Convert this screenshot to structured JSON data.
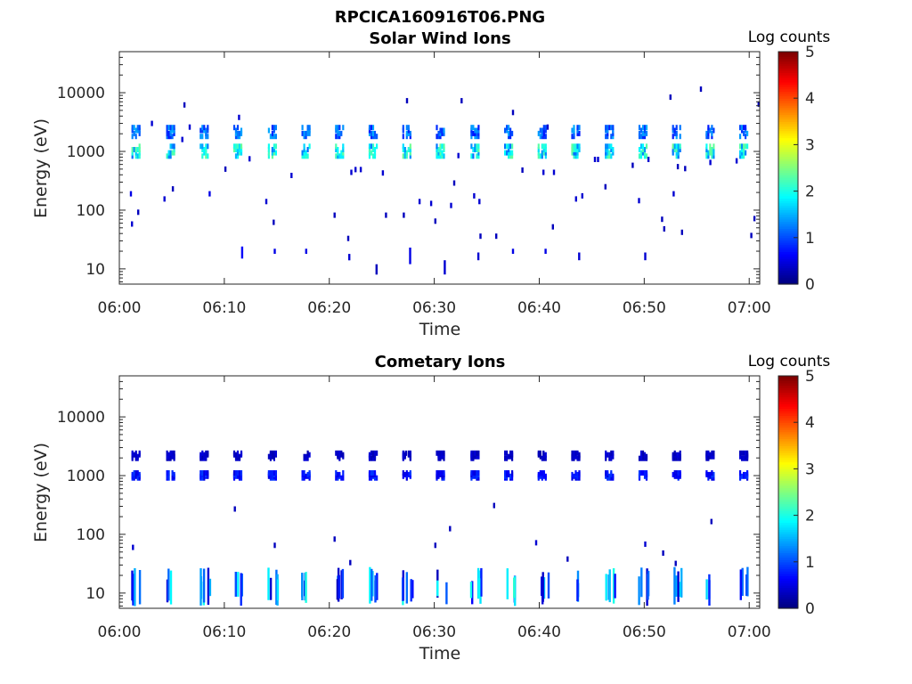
{
  "figure": {
    "title": "RPCICA160916T06.PNG"
  },
  "chart_data": [
    {
      "type": "heatmap",
      "title": "Solar Wind Ions",
      "xlabel": "Time",
      "ylabel": "Energy (eV)",
      "x_ticks": [
        "06:00",
        "06:10",
        "06:20",
        "06:30",
        "06:40",
        "06:50",
        "07:00"
      ],
      "x_range_minutes": [
        0,
        61
      ],
      "y_scale": "log",
      "y_range": [
        5.5,
        50000
      ],
      "y_ticks": [
        10,
        100,
        1000,
        10000
      ],
      "y_tick_labels": [
        "10",
        "100",
        "1000",
        "10000"
      ],
      "colorbar": {
        "label": "Log counts",
        "range": [
          0,
          5
        ],
        "ticks": [
          "0",
          "1",
          "2",
          "3",
          "4",
          "5"
        ],
        "colormap": "jet"
      },
      "sweep_times_minutes": [
        1.5,
        4.8,
        8.0,
        11.2,
        14.5,
        17.7,
        20.9,
        24.1,
        27.3,
        30.5,
        33.8,
        37.0,
        40.2,
        43.4,
        46.6,
        49.8,
        53.0,
        56.2,
        59.4
      ],
      "bands": [
        {
          "energy_min": 780,
          "energy_max": 1300,
          "log_counts": 2.1
        },
        {
          "energy_min": 1700,
          "energy_max": 2700,
          "log_counts": 1.3
        }
      ],
      "streaks": [
        {
          "t": 11.6,
          "emin": 15,
          "emax": 24,
          "v": 0.6
        },
        {
          "t": 14.7,
          "emin": 18,
          "emax": 22,
          "v": 0.5
        },
        {
          "t": 17.7,
          "emin": 18,
          "emax": 22,
          "v": 0.5
        },
        {
          "t": 21.8,
          "emin": 14,
          "emax": 18,
          "v": 0.4
        },
        {
          "t": 24.4,
          "emin": 8,
          "emax": 12,
          "v": 0.3
        },
        {
          "t": 27.6,
          "emin": 12,
          "emax": 23,
          "v": 0.5
        },
        {
          "t": 30.9,
          "emin": 8,
          "emax": 14,
          "v": 0.4
        },
        {
          "t": 34.1,
          "emin": 14,
          "emax": 19,
          "v": 0.4
        },
        {
          "t": 37.4,
          "emin": 18,
          "emax": 22,
          "v": 0.5
        },
        {
          "t": 40.5,
          "emin": 18,
          "emax": 22,
          "v": 0.5
        },
        {
          "t": 43.7,
          "emin": 14,
          "emax": 19,
          "v": 0.4
        },
        {
          "t": 50.0,
          "emin": 14,
          "emax": 19,
          "v": 0.4
        }
      ],
      "points": [
        {
          "t": 1.0,
          "e": 190,
          "v": 0.5
        },
        {
          "t": 1.1,
          "e": 58,
          "v": 0.4
        },
        {
          "t": 1.7,
          "e": 92,
          "v": 0.3
        },
        {
          "t": 3.0,
          "e": 3000,
          "v": 0.4
        },
        {
          "t": 4.2,
          "e": 155,
          "v": 0.4
        },
        {
          "t": 5.0,
          "e": 230,
          "v": 0.3
        },
        {
          "t": 5.9,
          "e": 1600,
          "v": 0.4
        },
        {
          "t": 6.1,
          "e": 6200,
          "v": 0.3
        },
        {
          "t": 6.6,
          "e": 2600,
          "v": 0.4
        },
        {
          "t": 8.5,
          "e": 190,
          "v": 0.5
        },
        {
          "t": 10.0,
          "e": 500,
          "v": 0.3
        },
        {
          "t": 11.3,
          "e": 3800,
          "v": 0.4
        },
        {
          "t": 12.3,
          "e": 750,
          "v": 0.4
        },
        {
          "t": 13.9,
          "e": 140,
          "v": 0.4
        },
        {
          "t": 14.6,
          "e": 62,
          "v": 0.3
        },
        {
          "t": 16.3,
          "e": 390,
          "v": 0.4
        },
        {
          "t": 20.4,
          "e": 82,
          "v": 0.3
        },
        {
          "t": 21.7,
          "e": 33,
          "v": 0.3
        },
        {
          "t": 22.0,
          "e": 440,
          "v": 0.4
        },
        {
          "t": 22.4,
          "e": 490,
          "v": 0.4
        },
        {
          "t": 22.9,
          "e": 490,
          "v": 0.4
        },
        {
          "t": 25.0,
          "e": 430,
          "v": 0.4
        },
        {
          "t": 25.3,
          "e": 82,
          "v": 0.3
        },
        {
          "t": 27.0,
          "e": 82,
          "v": 0.3
        },
        {
          "t": 27.3,
          "e": 7300,
          "v": 0.3
        },
        {
          "t": 28.5,
          "e": 140,
          "v": 0.4
        },
        {
          "t": 29.6,
          "e": 130,
          "v": 0.4
        },
        {
          "t": 30.0,
          "e": 65,
          "v": 0.3
        },
        {
          "t": 31.5,
          "e": 120,
          "v": 0.4
        },
        {
          "t": 31.8,
          "e": 290,
          "v": 0.3
        },
        {
          "t": 32.5,
          "e": 7300,
          "v": 0.3
        },
        {
          "t": 32.2,
          "e": 850,
          "v": 0.4
        },
        {
          "t": 33.7,
          "e": 175,
          "v": 0.4
        },
        {
          "t": 34.3,
          "e": 36,
          "v": 0.3
        },
        {
          "t": 34.2,
          "e": 140,
          "v": 0.4
        },
        {
          "t": 35.8,
          "e": 36,
          "v": 0.3
        },
        {
          "t": 37.4,
          "e": 4600,
          "v": 0.3
        },
        {
          "t": 38.3,
          "e": 480,
          "v": 0.3
        },
        {
          "t": 40.3,
          "e": 440,
          "v": 0.4
        },
        {
          "t": 40.7,
          "e": 2600,
          "v": 0.4
        },
        {
          "t": 41.3,
          "e": 440,
          "v": 0.4
        },
        {
          "t": 41.2,
          "e": 52,
          "v": 0.3
        },
        {
          "t": 43.4,
          "e": 155,
          "v": 0.4
        },
        {
          "t": 44.0,
          "e": 175,
          "v": 0.4
        },
        {
          "t": 45.2,
          "e": 730,
          "v": 0.4
        },
        {
          "t": 45.5,
          "e": 730,
          "v": 0.4
        },
        {
          "t": 46.2,
          "e": 250,
          "v": 0.3
        },
        {
          "t": 48.8,
          "e": 580,
          "v": 0.3
        },
        {
          "t": 49.4,
          "e": 145,
          "v": 0.4
        },
        {
          "t": 50.3,
          "e": 730,
          "v": 0.4
        },
        {
          "t": 51.6,
          "e": 70,
          "v": 0.3
        },
        {
          "t": 51.8,
          "e": 48,
          "v": 0.3
        },
        {
          "t": 52.4,
          "e": 8400,
          "v": 0.3
        },
        {
          "t": 52.7,
          "e": 190,
          "v": 0.4
        },
        {
          "t": 53.1,
          "e": 550,
          "v": 0.3
        },
        {
          "t": 53.5,
          "e": 42,
          "v": 0.3
        },
        {
          "t": 53.8,
          "e": 510,
          "v": 0.3
        },
        {
          "t": 55.3,
          "e": 11500,
          "v": 0.3
        },
        {
          "t": 56.2,
          "e": 650,
          "v": 0.4
        },
        {
          "t": 58.7,
          "e": 690,
          "v": 0.4
        },
        {
          "t": 60.1,
          "e": 37,
          "v": 0.3
        },
        {
          "t": 60.4,
          "e": 72,
          "v": 0.3
        },
        {
          "t": 60.8,
          "e": 6400,
          "v": 0.3
        }
      ]
    },
    {
      "type": "heatmap",
      "title": "Cometary Ions",
      "xlabel": "Time",
      "ylabel": "Energy (eV)",
      "x_ticks": [
        "06:00",
        "06:10",
        "06:20",
        "06:30",
        "06:40",
        "06:50",
        "07:00"
      ],
      "x_range_minutes": [
        0,
        61
      ],
      "y_scale": "log",
      "y_range": [
        5.5,
        50000
      ],
      "y_ticks": [
        10,
        100,
        1000,
        10000
      ],
      "y_tick_labels": [
        "10",
        "100",
        "1000",
        "10000"
      ],
      "colorbar": {
        "label": "Log counts",
        "range": [
          0,
          5
        ],
        "ticks": [
          "0",
          "1",
          "2",
          "3",
          "4",
          "5"
        ],
        "colormap": "jet"
      },
      "sweep_times_minutes": [
        1.5,
        4.8,
        8.0,
        11.2,
        14.5,
        17.7,
        20.9,
        24.1,
        27.3,
        30.5,
        33.8,
        37.0,
        40.2,
        43.4,
        46.6,
        49.8,
        53.0,
        56.2,
        59.4
      ],
      "bands": [
        {
          "energy_min": 880,
          "energy_max": 1150,
          "log_counts": 0.8
        },
        {
          "energy_min": 1900,
          "energy_max": 2500,
          "log_counts": 0.4
        }
      ],
      "low_energy_bursts": {
        "energy_min": 6,
        "energy_max": 28,
        "log_counts_range": [
          0.3,
          2.1
        ]
      },
      "points": [
        {
          "t": 1.2,
          "e": 60,
          "v": 0.4
        },
        {
          "t": 10.9,
          "e": 270,
          "v": 0.3
        },
        {
          "t": 14.7,
          "e": 65,
          "v": 0.3
        },
        {
          "t": 20.4,
          "e": 83,
          "v": 0.3
        },
        {
          "t": 21.9,
          "e": 33,
          "v": 0.3
        },
        {
          "t": 30.0,
          "e": 65,
          "v": 0.3
        },
        {
          "t": 31.4,
          "e": 125,
          "v": 0.3
        },
        {
          "t": 35.6,
          "e": 310,
          "v": 0.3
        },
        {
          "t": 39.6,
          "e": 72,
          "v": 0.4
        },
        {
          "t": 42.6,
          "e": 38,
          "v": 0.3
        },
        {
          "t": 50.0,
          "e": 68,
          "v": 0.4
        },
        {
          "t": 51.7,
          "e": 48,
          "v": 0.3
        },
        {
          "t": 52.9,
          "e": 32,
          "v": 0.3
        },
        {
          "t": 56.3,
          "e": 165,
          "v": 0.3
        },
        {
          "t": 40.3,
          "e": 2400,
          "v": 0.3
        },
        {
          "t": 27.2,
          "e": 2400,
          "v": 0.3
        }
      ]
    }
  ]
}
